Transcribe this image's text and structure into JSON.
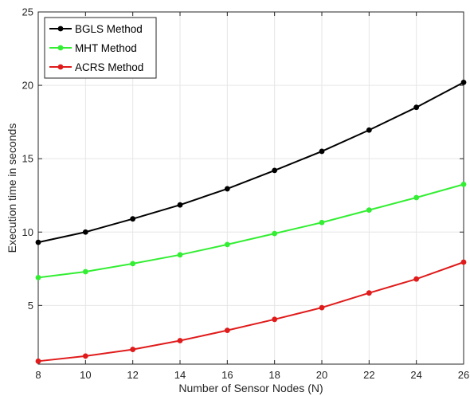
{
  "chart_data": {
    "type": "line",
    "title": "",
    "xlabel": "Number of Sensor Nodes (N)",
    "ylabel": "Execution time in seconds",
    "x": [
      8,
      10,
      12,
      14,
      16,
      18,
      20,
      22,
      24,
      26
    ],
    "xlim": [
      8,
      26
    ],
    "ylim": [
      1,
      25
    ],
    "xticks": [
      "8",
      "10",
      "12",
      "14",
      "16",
      "18",
      "20",
      "22",
      "24",
      "26"
    ],
    "yticks": [
      "5",
      "10",
      "15",
      "20",
      "25"
    ],
    "grid": true,
    "legend_position": "top-left",
    "series": [
      {
        "name": "BGLS Method",
        "color": "#000000",
        "values": [
          9.3,
          10.0,
          10.9,
          11.85,
          12.95,
          14.2,
          15.5,
          16.95,
          18.5,
          20.2
        ]
      },
      {
        "name": "MHT Method",
        "color": "#33ee33",
        "values": [
          6.9,
          7.3,
          7.85,
          8.45,
          9.15,
          9.9,
          10.65,
          11.5,
          12.35,
          13.25
        ]
      },
      {
        "name": "ACRS Method",
        "color": "#e01b1b",
        "values": [
          1.2,
          1.55,
          2.0,
          2.6,
          3.3,
          4.05,
          4.85,
          5.85,
          6.8,
          7.95
        ]
      }
    ]
  }
}
